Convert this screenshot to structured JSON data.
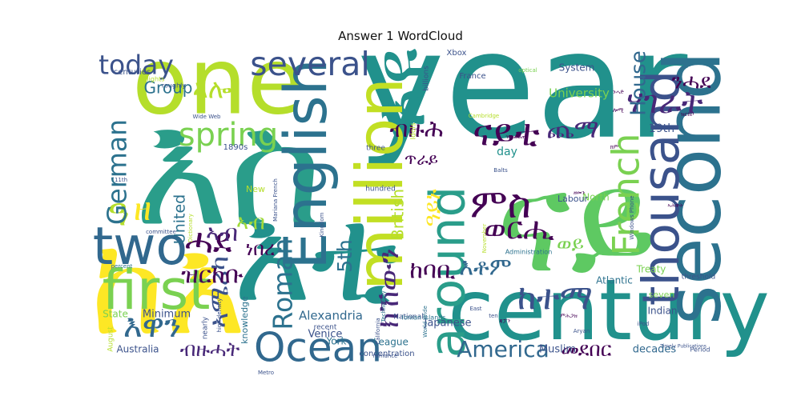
{
  "chart_data": {
    "type": "wordcloud",
    "title": "Answer 1 WordCloud",
    "colormap": "viridis",
    "background": "#ffffff",
    "words": [
      {
        "text": "እስ",
        "weight": 1.0,
        "color": "#2a9d8a"
      },
      {
        "text": "year",
        "weight": 0.95,
        "color": "#21918c"
      },
      {
        "text": "ናይ",
        "weight": 0.92,
        "color": "#5ec962"
      },
      {
        "text": "ከእ",
        "weight": 0.9,
        "color": "#fde725"
      },
      {
        "text": "እቲ",
        "weight": 0.88,
        "color": "#21918c"
      },
      {
        "text": "one",
        "weight": 0.7,
        "color": "#b5de2b"
      },
      {
        "text": "century",
        "weight": 0.66,
        "color": "#21918c"
      },
      {
        "text": "second",
        "weight": 0.62,
        "color": "#2c728e"
      },
      {
        "text": "እዩ",
        "weight": 0.6,
        "color": "#21918c"
      },
      {
        "text": "million",
        "weight": 0.55,
        "color": "#c2df23"
      },
      {
        "text": "English",
        "weight": 0.52,
        "color": "#2c728e"
      },
      {
        "text": "first",
        "weight": 0.5,
        "color": "#7ad151"
      },
      {
        "text": "two",
        "weight": 0.48,
        "color": "#31688e"
      },
      {
        "text": "thousand",
        "weight": 0.47,
        "color": "#3b528b"
      },
      {
        "text": "around",
        "weight": 0.46,
        "color": "#2a9d8a"
      },
      {
        "text": "Ocean",
        "weight": 0.4,
        "color": "#31688e"
      },
      {
        "text": "ምስ",
        "weight": 0.4,
        "color": "#440154"
      },
      {
        "text": "French",
        "weight": 0.38,
        "color": "#7ad151"
      },
      {
        "text": "ናይቲ",
        "weight": 0.38,
        "color": "#440154"
      },
      {
        "text": "ዓ",
        "weight": 0.38,
        "color": "#b5de2b"
      },
      {
        "text": "ሓደ",
        "weight": 0.36,
        "color": "#440154"
      },
      {
        "text": "ከተማ",
        "weight": 0.36,
        "color": "#3b528b"
      },
      {
        "text": "several",
        "weight": 0.35,
        "color": "#3b528b"
      },
      {
        "text": "ዘ",
        "weight": 0.35,
        "color": "#fde725"
      },
      {
        "text": "spring",
        "weight": 0.34,
        "color": "#7ad151"
      },
      {
        "text": "ሃገራት",
        "weight": 0.34,
        "color": "#482878"
      },
      {
        "text": "እዋን",
        "weight": 0.34,
        "color": "#31688e"
      },
      {
        "text": "ወርሒ",
        "weight": 0.33,
        "color": "#440154"
      },
      {
        "text": "ክኸውን",
        "weight": 0.32,
        "color": "#482878"
      },
      {
        "text": "ኣሜሪካ",
        "weight": 0.3,
        "color": "#3b528b"
      },
      {
        "text": "today",
        "weight": 0.3,
        "color": "#3b528b"
      },
      {
        "text": "German",
        "weight": 0.3,
        "color": "#2c728e"
      },
      {
        "text": "ኣሎ",
        "weight": 0.3,
        "color": "#b5de2b"
      },
      {
        "text": "Roman",
        "weight": 0.3,
        "color": "#2c728e"
      },
      {
        "text": "ጨማ",
        "weight": 0.29,
        "color": "#482878"
      },
      {
        "text": "ዝርከቡ",
        "weight": 0.28,
        "color": "#440154"
      },
      {
        "text": "ከባቢ",
        "weight": 0.28,
        "color": "#440154"
      },
      {
        "text": "እቶም",
        "weight": 0.28,
        "color": "#31688e"
      },
      {
        "text": "America",
        "weight": 0.26,
        "color": "#31688e"
      },
      {
        "text": "ብዙሕ",
        "weight": 0.27,
        "color": "#440154"
      },
      {
        "text": "ኣብ",
        "weight": 0.27,
        "color": "#482878"
      },
      {
        "text": "ዓይኑ",
        "weight": 0.26,
        "color": "#fde725"
      },
      {
        "text": "House",
        "weight": 0.25,
        "color": "#31688e"
      },
      {
        "text": "ንሓደ",
        "weight": 0.25,
        "color": "#440154"
      },
      {
        "text": "ኣብ",
        "weight": 0.25,
        "color": "#a0da39"
      },
      {
        "text": "ብዙሓት",
        "weight": 0.24,
        "color": "#482878"
      },
      {
        "text": "መደበር",
        "weight": 0.24,
        "color": "#440154"
      },
      {
        "text": "ወይ",
        "weight": 0.24,
        "color": "#7ad151"
      },
      {
        "text": "5th",
        "weight": 0.24,
        "color": "#2c728e"
      },
      {
        "text": "ነበረ",
        "weight": 0.23,
        "color": "#440154"
      },
      {
        "text": "Group",
        "weight": 0.2,
        "color": "#2c728e"
      },
      {
        "text": "ጥራይ",
        "weight": 0.2,
        "color": "#440154"
      },
      {
        "text": "British",
        "weight": 0.2,
        "color": "#b5de2b"
      },
      {
        "text": "United",
        "weight": 0.19,
        "color": "#2c728e"
      },
      {
        "text": "Alexandria",
        "weight": 0.16,
        "color": "#31688e"
      },
      {
        "text": "University",
        "weight": 0.16,
        "color": "#7ad151"
      },
      {
        "text": "day",
        "weight": 0.15,
        "color": "#21918c"
      },
      {
        "text": "19th",
        "weight": 0.15,
        "color": "#3b528b"
      },
      {
        "text": "Muslim",
        "weight": 0.14,
        "color": "#3b528b"
      },
      {
        "text": "decades",
        "weight": 0.14,
        "color": "#31688e"
      },
      {
        "text": "Japanese",
        "weight": 0.14,
        "color": "#3b528b"
      },
      {
        "text": "Venice",
        "weight": 0.14,
        "color": "#3b528b"
      },
      {
        "text": "York",
        "weight": 0.13,
        "color": "#2c728e"
      },
      {
        "text": "Minimum",
        "weight": 0.14,
        "color": "#3b528b"
      },
      {
        "text": "Australia",
        "weight": 0.13,
        "color": "#3b528b"
      },
      {
        "text": "State",
        "weight": 0.13,
        "color": "#7ad151"
      },
      {
        "text": "League",
        "weight": 0.13,
        "color": "#2c728e"
      },
      {
        "text": "Atlantic",
        "weight": 0.12,
        "color": "#2c728e"
      },
      {
        "text": "Indian",
        "weight": 0.12,
        "color": "#3b528b"
      },
      {
        "text": "Treaty",
        "weight": 0.12,
        "color": "#7ad151"
      },
      {
        "text": "System",
        "weight": 0.12,
        "color": "#3b528b"
      },
      {
        "text": "North",
        "weight": 0.12,
        "color": "#7ad151"
      },
      {
        "text": "seven",
        "weight": 0.11,
        "color": "#7ad151"
      },
      {
        "text": "Labour",
        "weight": 0.11,
        "color": "#3b528b"
      },
      {
        "text": "knowledge",
        "weight": 0.11,
        "color": "#2c728e"
      },
      {
        "text": "New",
        "weight": 0.11,
        "color": "#b5de2b"
      },
      {
        "text": "1890s",
        "weight": 0.1,
        "color": "#3b528b"
      },
      {
        "text": "centuries",
        "weight": 0.1,
        "color": "#3b528b"
      },
      {
        "text": "Xbox",
        "weight": 0.1,
        "color": "#3b528b"
      },
      {
        "text": "France",
        "weight": 0.1,
        "color": "#3b528b"
      },
      {
        "text": "concentration",
        "weight": 0.1,
        "color": "#3b528b"
      },
      {
        "text": "three",
        "weight": 0.09,
        "color": "#3b528b"
      },
      {
        "text": "hundred",
        "weight": 0.09,
        "color": "#3b528b"
      },
      {
        "text": "nearly",
        "weight": 0.09,
        "color": "#3b528b"
      },
      {
        "text": "recent",
        "weight": 0.09,
        "color": "#3b528b"
      },
      {
        "text": "August",
        "weight": 0.09,
        "color": "#b5de2b"
      },
      {
        "text": "Period",
        "weight": 0.08,
        "color": "#3b528b"
      },
      {
        "text": "Idols",
        "weight": 0.09,
        "color": "#b5de2b"
      },
      {
        "text": "billions",
        "weight": 0.09,
        "color": "#3b528b"
      },
      {
        "text": "threshold",
        "weight": 0.09,
        "color": "#3b528b"
      },
      {
        "text": "National",
        "weight": 0.09,
        "color": "#3b528b"
      },
      {
        "text": "Administration",
        "weight": 0.07,
        "color": "#2c728e"
      },
      {
        "text": "Ionian Islands",
        "weight": 0.07,
        "color": "#2c728e"
      },
      {
        "text": "World Wide",
        "weight": 0.06,
        "color": "#2c728e"
      },
      {
        "text": "Wide Web",
        "weight": 0.06,
        "color": "#3b528b"
      },
      {
        "text": "Windows Phone",
        "weight": 0.06,
        "color": "#3b528b"
      },
      {
        "text": "roughly",
        "weight": 0.07,
        "color": "#3b528b"
      },
      {
        "text": "flights",
        "weight": 0.07,
        "color": "#b5de2b"
      },
      {
        "text": "Kingdom",
        "weight": 0.06,
        "color": "#3b528b"
      },
      {
        "text": "committee",
        "weight": 0.06,
        "color": "#3b528b"
      },
      {
        "text": "percent",
        "weight": 0.06,
        "color": "#2c728e"
      },
      {
        "text": "Technology",
        "weight": 0.06,
        "color": "#2c728e"
      },
      {
        "text": "California",
        "weight": 0.06,
        "color": "#3b528b"
      },
      {
        "text": "high density",
        "weight": 0.06,
        "color": "#3b528b"
      },
      {
        "text": "Metro",
        "weight": 0.06,
        "color": "#3b528b"
      },
      {
        "text": "Aryan",
        "weight": 0.06,
        "color": "#3b528b"
      },
      {
        "text": "iPod",
        "weight": 0.06,
        "color": "#3b528b"
      },
      {
        "text": "East",
        "weight": 0.06,
        "color": "#3b528b"
      },
      {
        "text": "11th",
        "weight": 0.06,
        "color": "#3b528b"
      },
      {
        "text": "Mariana French",
        "weight": 0.05,
        "color": "#3b528b"
      },
      {
        "text": "Cambridge",
        "weight": 0.05,
        "color": "#b5de2b"
      },
      {
        "text": "optical",
        "weight": 0.05,
        "color": "#7ad151"
      },
      {
        "text": "Balts",
        "weight": 0.05,
        "color": "#3b528b"
      },
      {
        "text": "romance",
        "weight": 0.05,
        "color": "#3b528b"
      },
      {
        "text": "November",
        "weight": 0.05,
        "color": "#b5de2b"
      },
      {
        "text": "Dictionary",
        "weight": 0.05,
        "color": "#b5de2b"
      },
      {
        "text": "ten",
        "weight": 0.05,
        "color": "#3b528b"
      },
      {
        "text": "Timely Publications",
        "weight": 0.04,
        "color": "#3b528b"
      },
      {
        "text": "ሎሚ",
        "weight": 0.06,
        "color": "#440154"
      },
      {
        "text": "ንሓድ",
        "weight": 0.06,
        "color": "#440154"
      },
      {
        "text": "ዝርከቦ",
        "weight": 0.06,
        "color": "#440154"
      },
      {
        "text": "ክም",
        "weight": 0.06,
        "color": "#440154"
      },
      {
        "text": "ዝተፈልጠ",
        "weight": 0.05,
        "color": "#440154"
      },
      {
        "text": "ዘመን",
        "weight": 0.06,
        "color": "#440154"
      },
      {
        "text": "ጃፓን",
        "weight": 0.05,
        "color": "#440154"
      },
      {
        "text": "ምሕጋዝ",
        "weight": 0.05,
        "color": "#440154"
      },
      {
        "text": "ኣሕዋት",
        "weight": 0.05,
        "color": "#440154"
      }
    ]
  }
}
